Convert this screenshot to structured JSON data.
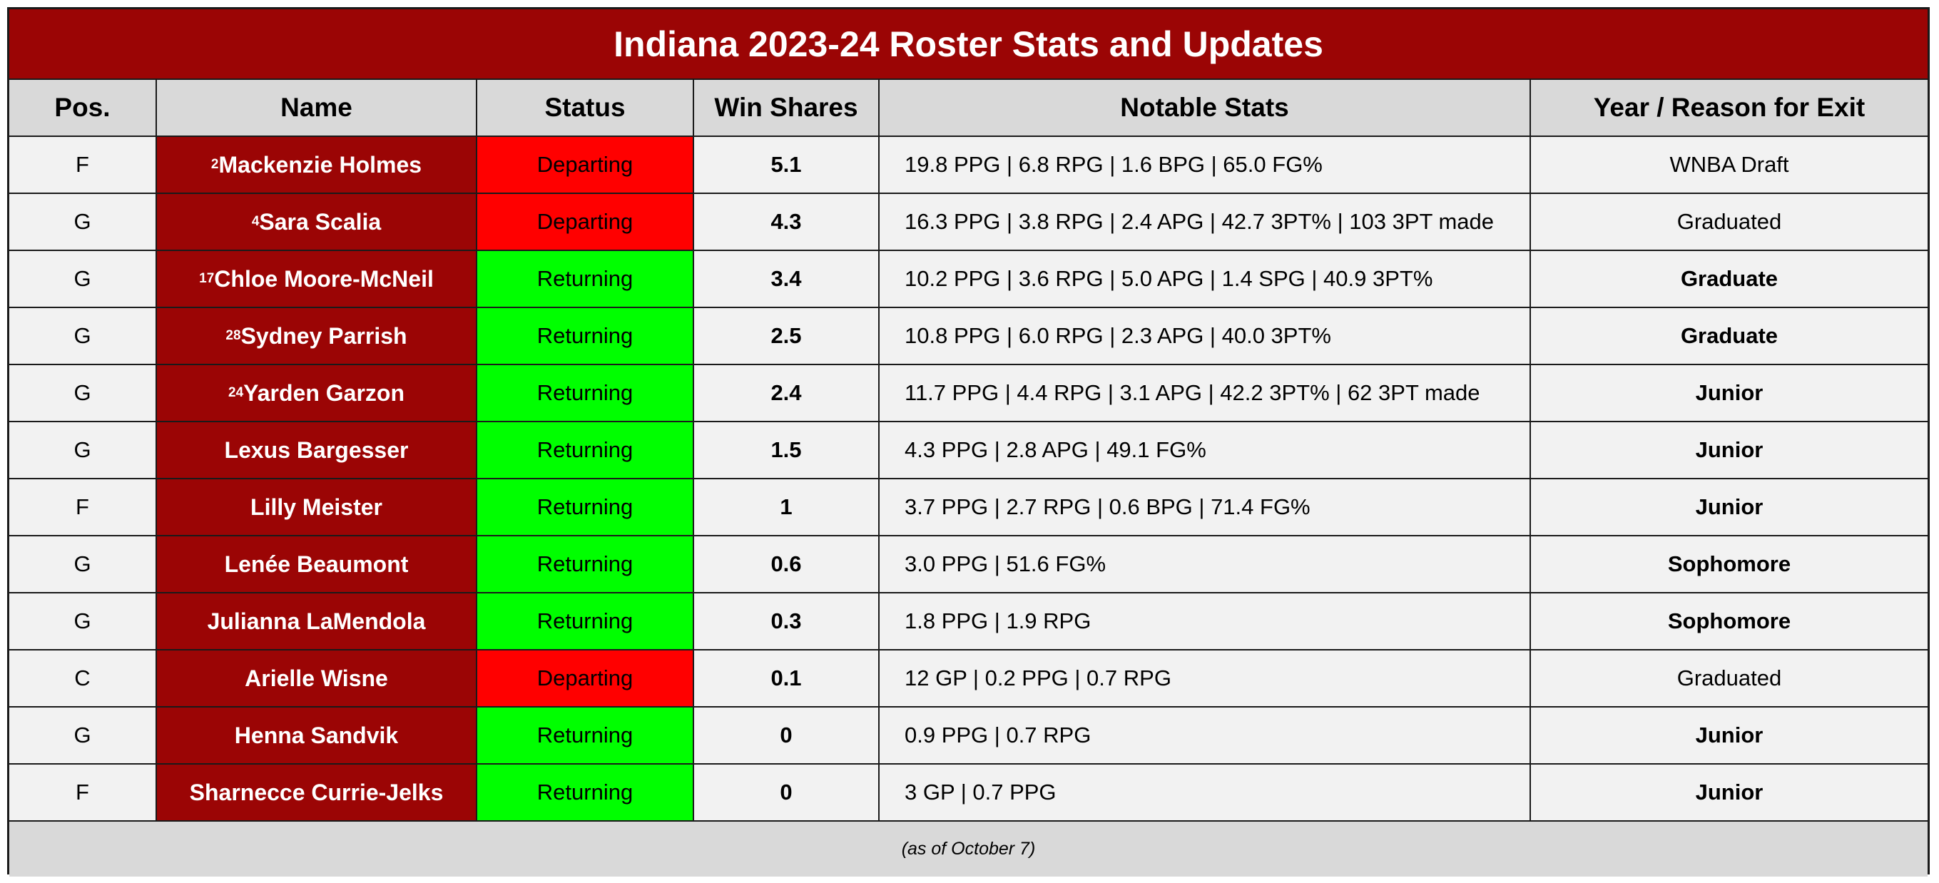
{
  "title": "Indiana 2023-24 Roster Stats and Updates",
  "colors": {
    "title_bg": "#9b0505",
    "name_bg": "#9b0505",
    "header_bg": "#d9d9d9",
    "row_bg": "#f2f2f2",
    "departing": "#ff0000",
    "returning": "#00ff00"
  },
  "headers": {
    "pos": "Pos.",
    "name": "Name",
    "status": "Status",
    "win_shares": "Win Shares",
    "notable_stats": "Notable Stats",
    "year_exit": "Year / Reason for Exit"
  },
  "rows": [
    {
      "pos": "F",
      "rank": "2",
      "name": "Mackenzie Holmes",
      "status": "Departing",
      "win_shares": "5.1",
      "stats": "19.8 PPG | 6.8 RPG | 1.6 BPG | 65.0 FG%",
      "year": "WNBA Draft",
      "year_bold": false
    },
    {
      "pos": "G",
      "rank": "4",
      "name": "Sara Scalia",
      "status": "Departing",
      "win_shares": "4.3",
      "stats": "16.3 PPG | 3.8 RPG | 2.4 APG | 42.7 3PT% | 103 3PT made",
      "year": "Graduated",
      "year_bold": false
    },
    {
      "pos": "G",
      "rank": "17",
      "name": "Chloe Moore-McNeil",
      "status": "Returning",
      "win_shares": "3.4",
      "stats": "10.2 PPG | 3.6 RPG | 5.0 APG | 1.4 SPG | 40.9 3PT%",
      "year": "Graduate",
      "year_bold": true
    },
    {
      "pos": "G",
      "rank": "28",
      "name": "Sydney Parrish",
      "status": "Returning",
      "win_shares": "2.5",
      "stats": "10.8 PPG | 6.0 RPG | 2.3 APG | 40.0 3PT%",
      "year": "Graduate",
      "year_bold": true
    },
    {
      "pos": "G",
      "rank": "24",
      "name": "Yarden Garzon",
      "status": "Returning",
      "win_shares": "2.4",
      "stats": "11.7 PPG | 4.4 RPG | 3.1 APG | 42.2 3PT% | 62 3PT made",
      "year": "Junior",
      "year_bold": true
    },
    {
      "pos": "G",
      "rank": "",
      "name": "Lexus Bargesser",
      "status": "Returning",
      "win_shares": "1.5",
      "stats": "4.3 PPG | 2.8 APG | 49.1 FG%",
      "year": "Junior",
      "year_bold": true
    },
    {
      "pos": "F",
      "rank": "",
      "name": "Lilly Meister",
      "status": "Returning",
      "win_shares": "1",
      "stats": "3.7 PPG | 2.7 RPG | 0.6 BPG | 71.4 FG%",
      "year": "Junior",
      "year_bold": true
    },
    {
      "pos": "G",
      "rank": "",
      "name": "Lenée Beaumont",
      "status": "Returning",
      "win_shares": "0.6",
      "stats": "3.0 PPG | 51.6 FG%",
      "year": "Sophomore",
      "year_bold": true
    },
    {
      "pos": "G",
      "rank": "",
      "name": "Julianna LaMendola",
      "status": "Returning",
      "win_shares": "0.3",
      "stats": "1.8 PPG | 1.9 RPG",
      "year": "Sophomore",
      "year_bold": true
    },
    {
      "pos": "C",
      "rank": "",
      "name": "Arielle Wisne",
      "status": "Departing",
      "win_shares": "0.1",
      "stats": "12 GP | 0.2 PPG | 0.7 RPG",
      "year": "Graduated",
      "year_bold": false
    },
    {
      "pos": "G",
      "rank": "",
      "name": "Henna Sandvik",
      "status": "Returning",
      "win_shares": "0",
      "stats": "0.9 PPG | 0.7 RPG",
      "year": "Junior",
      "year_bold": true
    },
    {
      "pos": "F",
      "rank": "",
      "name": "Sharnecce Currie-Jelks",
      "status": "Returning",
      "win_shares": "0",
      "stats": "3 GP | 0.7 PPG",
      "year": "Junior",
      "year_bold": true
    }
  ],
  "footnote": "(as of October 7)"
}
